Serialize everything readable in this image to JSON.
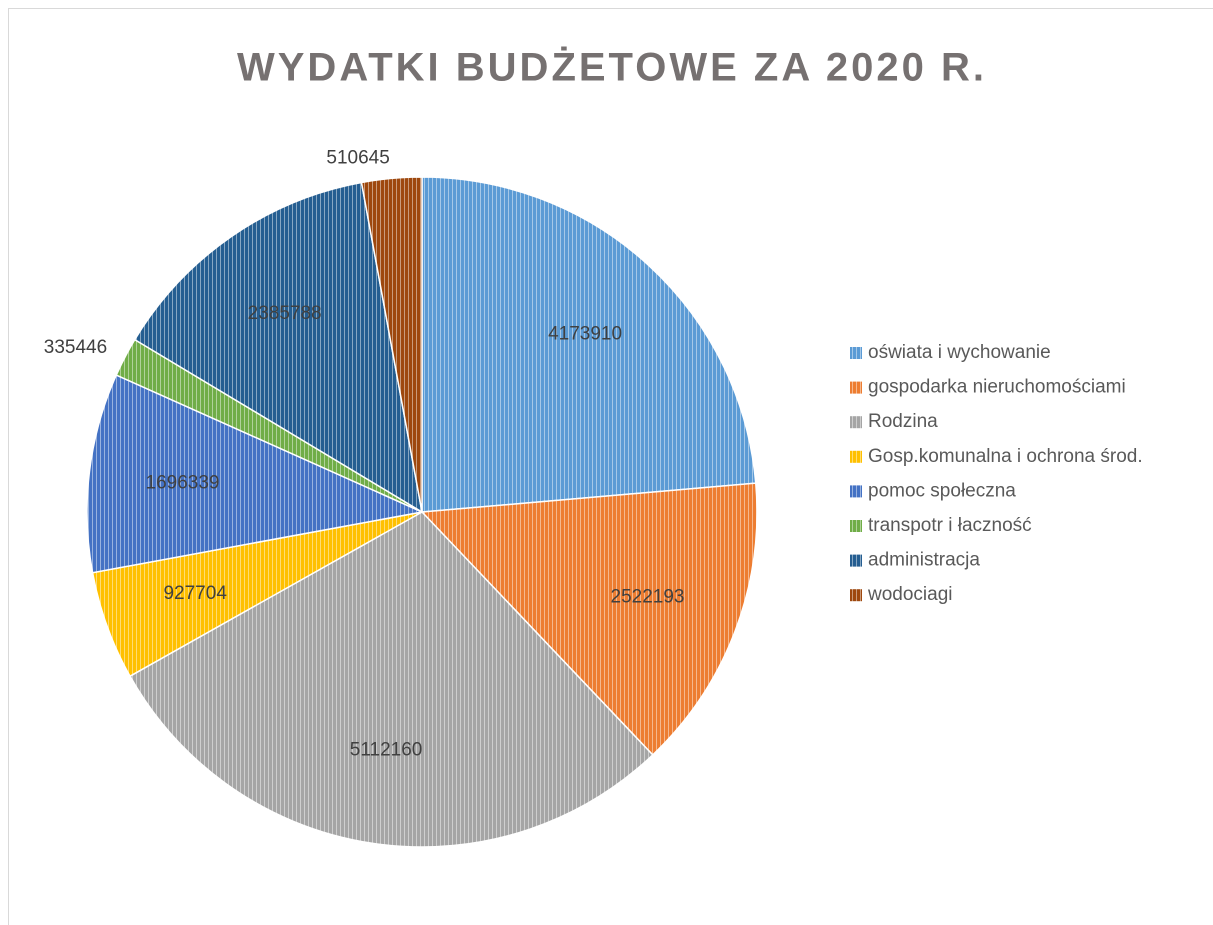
{
  "chart_data": {
    "type": "pie",
    "title": "WYDATKI BUDŻETOWE ZA 2020 R.",
    "categories": [
      "oświata i wychowanie",
      "gospodarka nieruchomościami",
      "Rodzina",
      "Gosp.komunalna i ochrona  środ.",
      "pomoc społeczna",
      "transpotr i łaczność",
      "administracja",
      "wodociagi"
    ],
    "values": [
      4173910,
      2522193,
      5112160,
      927704,
      1696339,
      335446,
      2385788,
      510645
    ],
    "colors": [
      "#5b9bd5",
      "#ed7d31",
      "#a5a5a5",
      "#ffc000",
      "#4472c4",
      "#70ad47",
      "#255e91",
      "#9e480e"
    ],
    "legend": "right"
  }
}
